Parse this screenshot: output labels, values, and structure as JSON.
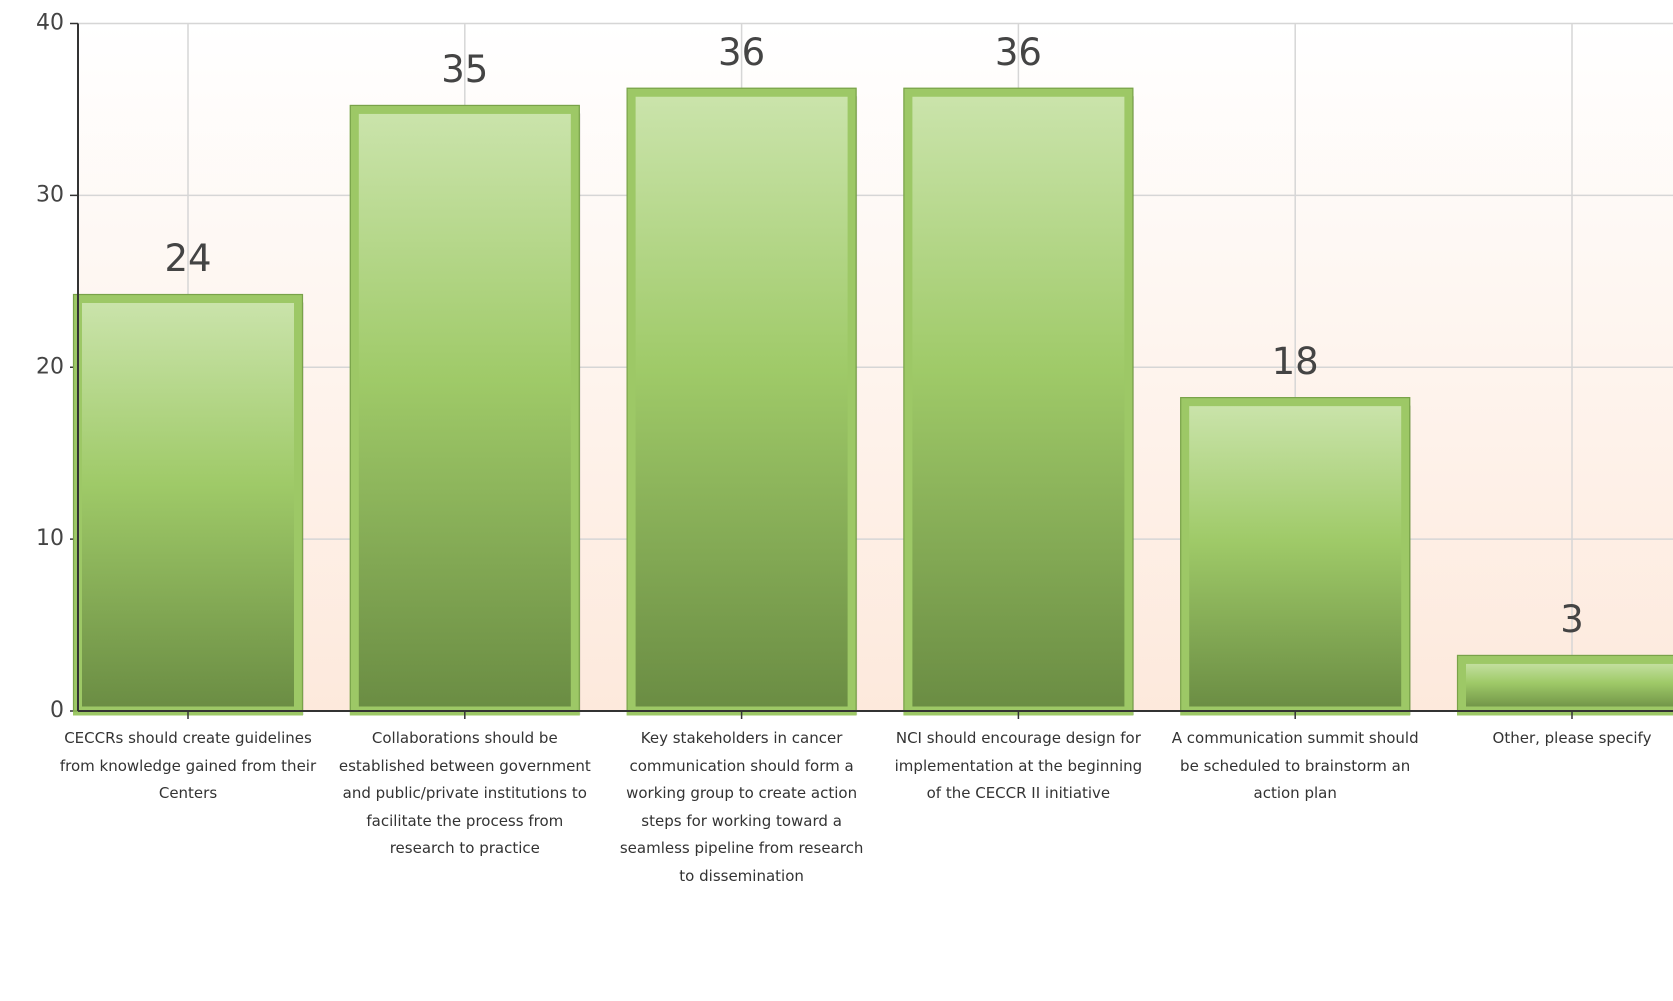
{
  "chart_data": {
    "type": "bar",
    "categories": [
      "CECCRs should create guidelines from knowledge gained from their Centers",
      "Collaborations should be established between government and public/private institutions to facilitate the process from research to practice",
      "Key stakeholders in cancer communication should form a working group to create action steps for working toward a seamless pipeline from research to dissemination",
      "NCI should encourage design for implementation at the beginning of the CECCR II initiative",
      "A communication summit should be scheduled to brainstorm an action plan",
      "Other, please specify"
    ],
    "values": [
      24,
      35,
      36,
      36,
      18,
      3
    ],
    "color": "#9dc866",
    "ylim": [
      0,
      40
    ],
    "yticks": [
      0,
      10,
      20,
      30,
      40
    ],
    "grid": true
  }
}
